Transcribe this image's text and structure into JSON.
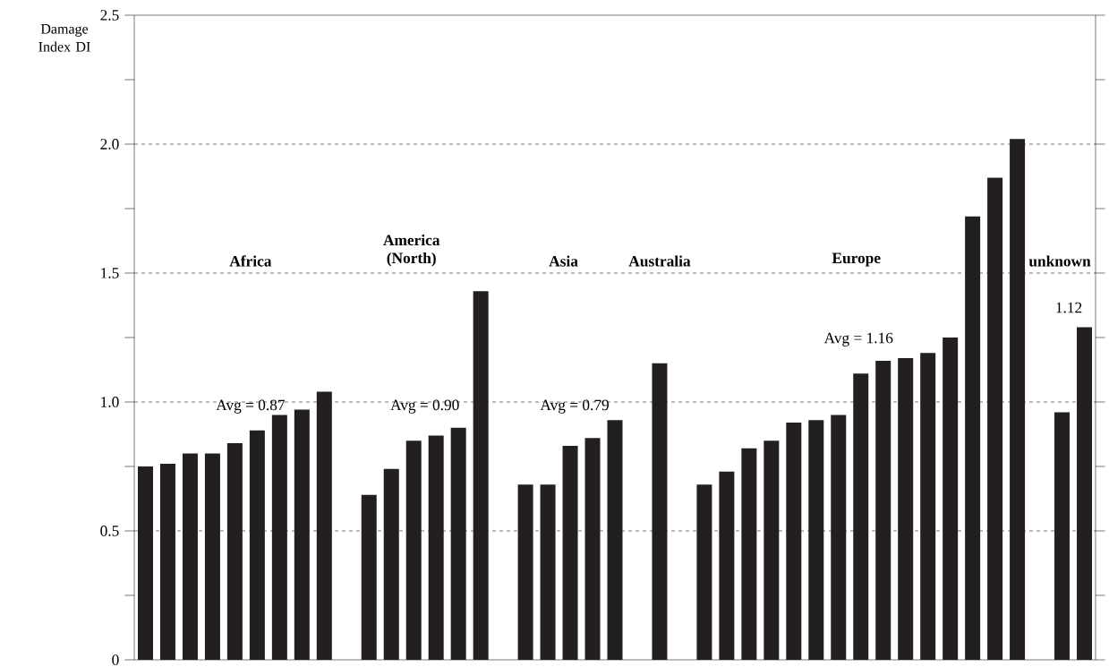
{
  "chart_data": {
    "type": "bar",
    "ylabel": "Damage Index DI",
    "categories": [
      null,
      null,
      null,
      null,
      null,
      null,
      null,
      null,
      null,
      null,
      null,
      null,
      null,
      null,
      null,
      null,
      null,
      null,
      null,
      null,
      null,
      null,
      null,
      null,
      null,
      null,
      null,
      null,
      null,
      null,
      null,
      null,
      null,
      null,
      null,
      null,
      null,
      null,
      null,
      null,
      null,
      null,
      null
    ],
    "values": [
      0.75,
      0.76,
      0.8,
      0.8,
      0.84,
      0.89,
      0.95,
      0.97,
      1.04,
      null,
      0.64,
      0.74,
      0.85,
      0.87,
      0.9,
      1.43,
      null,
      0.68,
      0.68,
      0.83,
      0.86,
      0.93,
      null,
      1.15,
      null,
      0.68,
      0.73,
      0.82,
      0.85,
      0.92,
      0.93,
      0.95,
      1.11,
      1.16,
      1.17,
      1.19,
      1.25,
      1.72,
      1.87,
      2.02,
      null,
      0.96,
      1.29
    ],
    "color": "#231f20",
    "ylim": [
      0,
      2.5
    ],
    "yticks": [
      {
        "value": 0,
        "label": "0"
      },
      {
        "value": 0.25,
        "label": null
      },
      {
        "value": 0.5,
        "label": "0.5"
      },
      {
        "value": 0.75,
        "label": null
      },
      {
        "value": 1.0,
        "label": "1.0"
      },
      {
        "value": 1.25,
        "label": null
      },
      {
        "value": 1.5,
        "label": "1.5"
      },
      {
        "value": 1.75,
        "label": null
      },
      {
        "value": 2.0,
        "label": "2.0"
      },
      {
        "value": 2.25,
        "label": null
      },
      {
        "value": 2.5,
        "label": "2.5"
      }
    ],
    "grid": "y",
    "annotations": [
      "Africa",
      "America (North)",
      "Asia",
      "Australia",
      "Europe",
      "unknown",
      "Avg = 0.87",
      "Avg = 0.90",
      "Avg = 0.79",
      "Avg = 1.16",
      "1.12"
    ]
  }
}
